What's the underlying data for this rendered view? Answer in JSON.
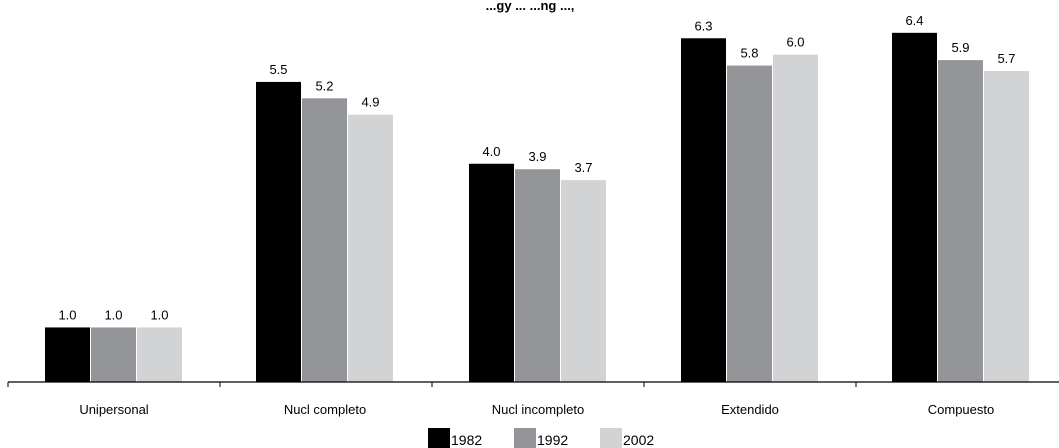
{
  "chart_data": {
    "type": "bar",
    "title": "...gy ... ...ng ...,",
    "categories": [
      "Unipersonal",
      "Nucl completo",
      "Nucl incompleto",
      "Extendido",
      "Compuesto"
    ],
    "series": [
      {
        "name": "1982",
        "color": "#000000",
        "values": [
          1.0,
          5.5,
          4.0,
          6.3,
          6.4
        ],
        "labels": [
          "1.0",
          "5.5",
          "4.0",
          "6.3",
          "6.4"
        ]
      },
      {
        "name": "1992",
        "color": "#939598",
        "values": [
          1.0,
          5.2,
          3.9,
          5.8,
          5.9
        ],
        "labels": [
          "1.0",
          "5.2",
          "3.9",
          "5.8",
          "5.9"
        ]
      },
      {
        "name": "2002",
        "color": "#d1d3d4",
        "values": [
          1.0,
          4.9,
          3.7,
          6.0,
          5.7
        ],
        "labels": [
          "1.0",
          "4.9",
          "3.7",
          "6.0",
          "5.7"
        ]
      }
    ],
    "ylim": [
      0,
      6.8
    ],
    "xlabel": "",
    "ylabel": "",
    "grid": false,
    "legend_position": "bottom"
  }
}
